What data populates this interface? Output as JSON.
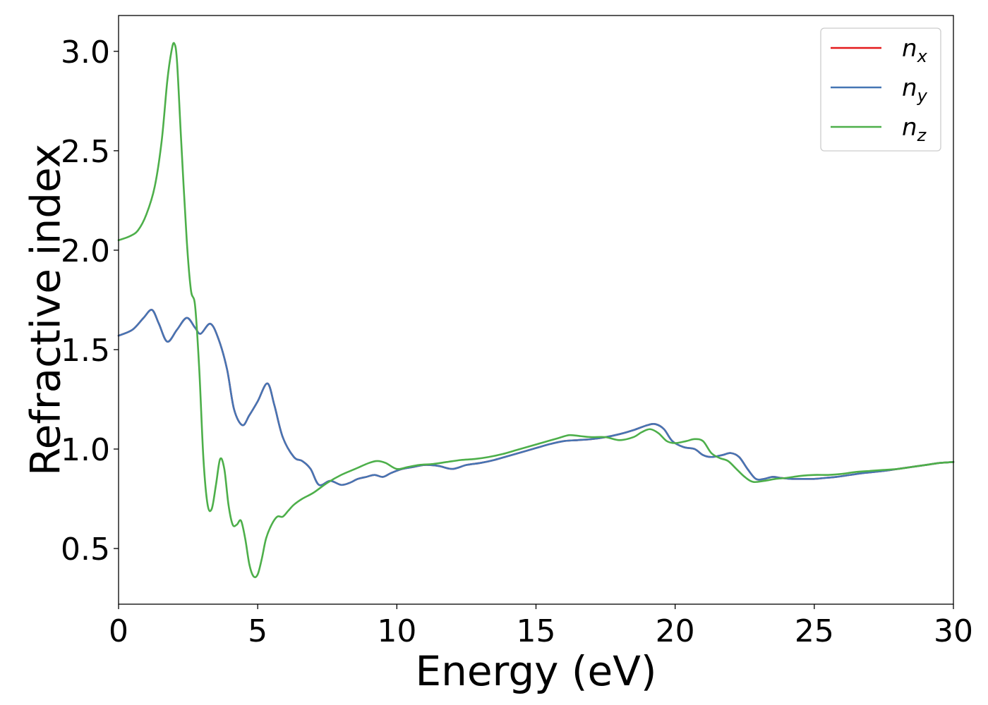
{
  "chart_data": {
    "type": "line",
    "title": "",
    "xlabel": "Energy (eV)",
    "ylabel": "Refractive index",
    "xlim": [
      0,
      30
    ],
    "ylim": [
      0.22,
      3.18
    ],
    "xticks": [
      0,
      5,
      10,
      15,
      20,
      25,
      30
    ],
    "xtick_labels": [
      "0",
      "5",
      "10",
      "15",
      "20",
      "25",
      "30"
    ],
    "yticks": [
      0.5,
      1.0,
      1.5,
      2.0,
      2.5,
      3.0
    ],
    "ytick_labels": [
      "0.5",
      "1.0",
      "1.5",
      "2.0",
      "2.5",
      "3.0"
    ],
    "grid": false,
    "legend_position": "top-right",
    "series": [
      {
        "name": "n",
        "subscript": "x",
        "color": "#e41a1c",
        "x": [
          0,
          0.5,
          0.9,
          1.2,
          1.45,
          1.75,
          2.1,
          2.45,
          2.75,
          2.95,
          3.3,
          3.6,
          3.9,
          4.15,
          4.45,
          4.7,
          5.0,
          5.35,
          5.6,
          5.9,
          6.3,
          6.6,
          6.9,
          7.2,
          7.6,
          8.0,
          8.3,
          8.6,
          8.9,
          9.2,
          9.5,
          9.8,
          10.2,
          10.6,
          11.0,
          11.5,
          12.0,
          12.5,
          13.0,
          13.5,
          14.0,
          14.5,
          15.0,
          15.5,
          16.0,
          16.5,
          17.0,
          17.5,
          18.0,
          18.5,
          19.0,
          19.3,
          19.6,
          19.9,
          20.3,
          20.7,
          21.0,
          21.3,
          21.7,
          22.0,
          22.3,
          22.6,
          22.9,
          23.2,
          23.5,
          23.8,
          24.2,
          24.6,
          25.0,
          25.4,
          25.8,
          26.3,
          26.8,
          27.5,
          28.0,
          28.5,
          29.0,
          29.5,
          30.0
        ],
        "y": [
          1.57,
          1.6,
          1.66,
          1.7,
          1.63,
          1.54,
          1.6,
          1.66,
          1.61,
          1.58,
          1.63,
          1.55,
          1.4,
          1.2,
          1.12,
          1.17,
          1.24,
          1.33,
          1.22,
          1.06,
          0.96,
          0.94,
          0.9,
          0.82,
          0.84,
          0.82,
          0.83,
          0.85,
          0.86,
          0.87,
          0.86,
          0.88,
          0.9,
          0.91,
          0.92,
          0.915,
          0.9,
          0.92,
          0.93,
          0.945,
          0.965,
          0.985,
          1.005,
          1.025,
          1.04,
          1.045,
          1.05,
          1.06,
          1.075,
          1.095,
          1.12,
          1.125,
          1.1,
          1.04,
          1.01,
          1.0,
          0.97,
          0.96,
          0.97,
          0.98,
          0.96,
          0.9,
          0.85,
          0.85,
          0.86,
          0.855,
          0.85,
          0.85,
          0.85,
          0.855,
          0.86,
          0.87,
          0.88,
          0.89,
          0.9,
          0.91,
          0.92,
          0.93,
          0.935
        ]
      },
      {
        "name": "n",
        "subscript": "y",
        "color": "#4575b4",
        "x": [
          0,
          0.5,
          0.9,
          1.2,
          1.45,
          1.75,
          2.1,
          2.45,
          2.75,
          2.95,
          3.3,
          3.6,
          3.9,
          4.15,
          4.45,
          4.7,
          5.0,
          5.35,
          5.6,
          5.9,
          6.3,
          6.6,
          6.9,
          7.2,
          7.6,
          8.0,
          8.3,
          8.6,
          8.9,
          9.2,
          9.5,
          9.8,
          10.2,
          10.6,
          11.0,
          11.5,
          12.0,
          12.5,
          13.0,
          13.5,
          14.0,
          14.5,
          15.0,
          15.5,
          16.0,
          16.5,
          17.0,
          17.5,
          18.0,
          18.5,
          19.0,
          19.3,
          19.6,
          19.9,
          20.3,
          20.7,
          21.0,
          21.3,
          21.7,
          22.0,
          22.3,
          22.6,
          22.9,
          23.2,
          23.5,
          23.8,
          24.2,
          24.6,
          25.0,
          25.4,
          25.8,
          26.3,
          26.8,
          27.5,
          28.0,
          28.5,
          29.0,
          29.5,
          30.0
        ],
        "y": [
          1.57,
          1.6,
          1.66,
          1.7,
          1.63,
          1.54,
          1.6,
          1.66,
          1.61,
          1.58,
          1.63,
          1.55,
          1.4,
          1.2,
          1.12,
          1.17,
          1.24,
          1.33,
          1.22,
          1.06,
          0.96,
          0.94,
          0.9,
          0.82,
          0.84,
          0.82,
          0.83,
          0.85,
          0.86,
          0.87,
          0.86,
          0.88,
          0.9,
          0.91,
          0.92,
          0.915,
          0.9,
          0.92,
          0.93,
          0.945,
          0.965,
          0.985,
          1.005,
          1.025,
          1.04,
          1.045,
          1.05,
          1.06,
          1.075,
          1.095,
          1.12,
          1.125,
          1.1,
          1.04,
          1.01,
          1.0,
          0.97,
          0.96,
          0.97,
          0.98,
          0.96,
          0.9,
          0.85,
          0.85,
          0.86,
          0.855,
          0.85,
          0.85,
          0.85,
          0.855,
          0.86,
          0.87,
          0.88,
          0.89,
          0.9,
          0.91,
          0.92,
          0.93,
          0.935
        ]
      },
      {
        "name": "n",
        "subscript": "z",
        "color": "#4daf4a",
        "x": [
          0,
          0.4,
          0.7,
          1.0,
          1.3,
          1.55,
          1.75,
          1.9,
          2.0,
          2.1,
          2.25,
          2.45,
          2.6,
          2.75,
          2.9,
          3.05,
          3.2,
          3.35,
          3.5,
          3.65,
          3.8,
          3.95,
          4.1,
          4.25,
          4.4,
          4.55,
          4.7,
          4.85,
          5.0,
          5.15,
          5.3,
          5.5,
          5.7,
          5.9,
          6.1,
          6.3,
          6.6,
          7.0,
          7.5,
          8.0,
          8.5,
          9.0,
          9.3,
          9.6,
          10.0,
          10.4,
          10.8,
          11.3,
          11.8,
          12.3,
          12.8,
          13.3,
          13.8,
          14.3,
          14.8,
          15.3,
          15.8,
          16.2,
          16.6,
          17.0,
          17.5,
          18.0,
          18.5,
          18.8,
          19.1,
          19.4,
          19.7,
          20.0,
          20.4,
          20.7,
          21.0,
          21.3,
          21.6,
          21.9,
          22.2,
          22.5,
          22.8,
          23.2,
          23.6,
          24.0,
          24.5,
          25.0,
          25.5,
          26.0,
          26.5,
          27.0,
          27.5,
          28.0,
          28.5,
          29.0,
          29.5,
          30.0
        ],
        "y": [
          2.05,
          2.07,
          2.1,
          2.18,
          2.32,
          2.55,
          2.85,
          3.0,
          3.04,
          2.95,
          2.55,
          2.05,
          1.8,
          1.72,
          1.4,
          0.95,
          0.72,
          0.7,
          0.82,
          0.95,
          0.9,
          0.72,
          0.62,
          0.62,
          0.64,
          0.55,
          0.42,
          0.36,
          0.37,
          0.45,
          0.55,
          0.62,
          0.66,
          0.66,
          0.69,
          0.72,
          0.75,
          0.78,
          0.83,
          0.87,
          0.9,
          0.93,
          0.94,
          0.93,
          0.9,
          0.91,
          0.92,
          0.925,
          0.935,
          0.945,
          0.95,
          0.96,
          0.975,
          0.995,
          1.015,
          1.035,
          1.055,
          1.07,
          1.065,
          1.06,
          1.06,
          1.045,
          1.06,
          1.085,
          1.1,
          1.08,
          1.04,
          1.03,
          1.04,
          1.05,
          1.04,
          0.98,
          0.955,
          0.94,
          0.9,
          0.86,
          0.835,
          0.84,
          0.85,
          0.855,
          0.865,
          0.87,
          0.87,
          0.875,
          0.885,
          0.89,
          0.895,
          0.9,
          0.91,
          0.92,
          0.93,
          0.935
        ]
      }
    ]
  }
}
